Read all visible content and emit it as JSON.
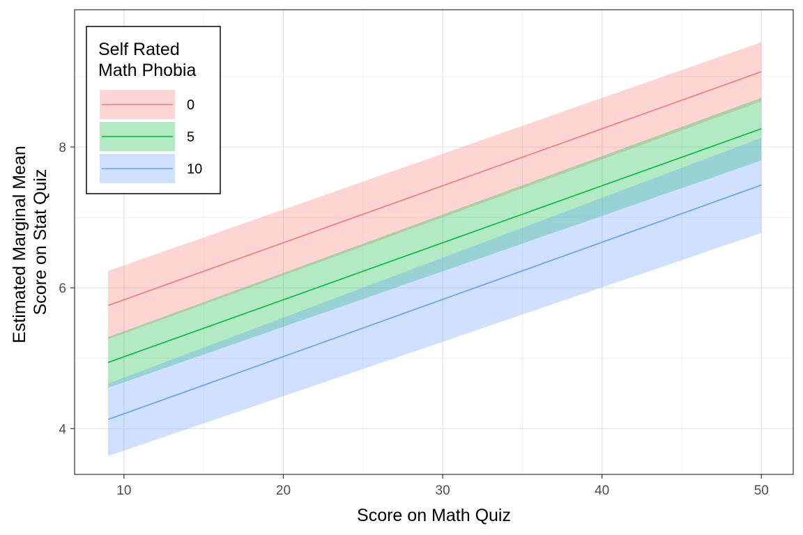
{
  "chart_data": {
    "type": "line",
    "xlabel": "Score on Math Quiz",
    "ylabel_lines": [
      "Estimated Marginal Mean",
      "Score on Stat Quiz"
    ],
    "xlim": [
      6.9,
      52.0
    ],
    "ylim": [
      3.35,
      9.95
    ],
    "x_ticks": [
      10,
      20,
      30,
      40,
      50
    ],
    "y_ticks": [
      4,
      6,
      8
    ],
    "x_tick_labels": [
      "10",
      "20",
      "30",
      "40",
      "50"
    ],
    "y_tick_labels": [
      "4",
      "6",
      "8"
    ],
    "grid": true,
    "legend": {
      "title_lines": [
        "Self Rated",
        "Math Phobia"
      ],
      "position": "top-left",
      "entries": [
        "0",
        "5",
        "10"
      ]
    },
    "series": [
      {
        "name": "0",
        "color": "#F8766D",
        "fill": "#F8766D",
        "x": [
          9,
          50
        ],
        "y": [
          5.75,
          9.07
        ],
        "lower": [
          5.27,
          8.65
        ],
        "upper": [
          6.24,
          9.49
        ]
      },
      {
        "name": "5",
        "color": "#00BA38",
        "fill": "#00BA38",
        "x": [
          9,
          50
        ],
        "y": [
          4.94,
          8.26
        ],
        "lower": [
          4.58,
          7.81
        ],
        "upper": [
          5.3,
          8.7
        ]
      },
      {
        "name": "10",
        "color": "#619CFF",
        "fill": "#619CFF",
        "x": [
          9,
          50
        ],
        "y": [
          4.13,
          7.46
        ],
        "lower": [
          3.61,
          6.78
        ],
        "upper": [
          4.64,
          8.13
        ]
      }
    ]
  }
}
